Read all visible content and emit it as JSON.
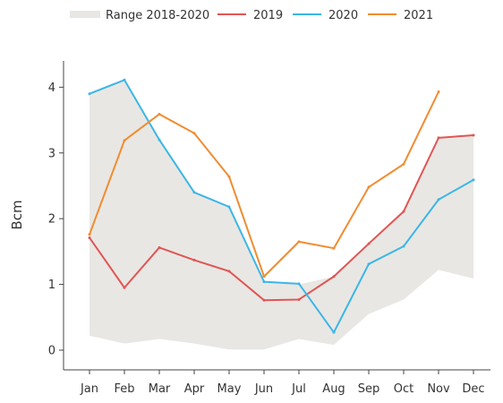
{
  "chart_data": {
    "type": "line",
    "title": "",
    "xlabel": "",
    "ylabel": "Bcm",
    "ylim": [
      -0.3,
      4.4
    ],
    "yticks": [
      0,
      1,
      2,
      3,
      4
    ],
    "grid": false,
    "legend_position": "top",
    "categories": [
      "Jan",
      "Feb",
      "Mar",
      "Apr",
      "May",
      "Jun",
      "Jul",
      "Aug",
      "Sep",
      "Oct",
      "Nov",
      "Dec"
    ],
    "range_band": {
      "name": "Range 2018-2020",
      "color": "#e9e7e3",
      "low": [
        0.22,
        0.1,
        0.17,
        0.1,
        0.01,
        0.01,
        0.17,
        0.08,
        0.55,
        0.77,
        1.22,
        1.09
      ],
      "high": [
        3.9,
        4.11,
        3.2,
        2.4,
        2.18,
        1.04,
        1.0,
        1.12,
        1.62,
        2.11,
        3.23,
        3.27
      ]
    },
    "series": [
      {
        "name": "2019",
        "color": "#e05555",
        "values": [
          1.71,
          0.95,
          1.56,
          1.37,
          1.2,
          0.76,
          0.77,
          1.12,
          1.62,
          2.11,
          3.23,
          3.27
        ]
      },
      {
        "name": "2020",
        "color": "#3bb6e8",
        "values": [
          3.9,
          4.11,
          3.2,
          2.4,
          2.18,
          1.04,
          1.01,
          0.27,
          1.31,
          1.58,
          2.29,
          2.59
        ]
      },
      {
        "name": "2021",
        "color": "#f08c30",
        "values": [
          1.76,
          3.19,
          3.59,
          3.3,
          2.64,
          1.12,
          1.65,
          1.55,
          2.48,
          2.83,
          3.93,
          null
        ]
      }
    ]
  }
}
